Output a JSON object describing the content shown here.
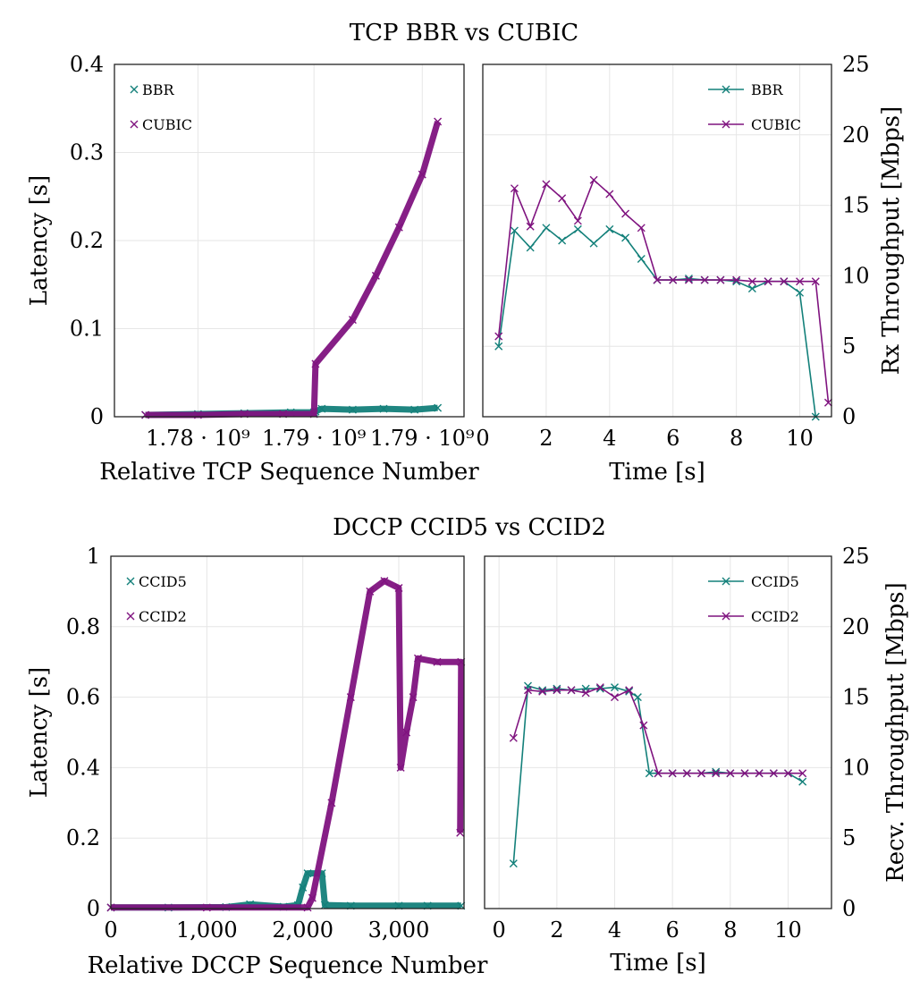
{
  "colors": {
    "teal": "#13807a",
    "purple": "#7f137f"
  },
  "sections": [
    {
      "title": "TCP BBR vs CUBIC",
      "left": {
        "type": "scatter",
        "ylabel": "Latency [s]",
        "xlabel": "Relative TCP Sequence Number",
        "xlim": [
          1.7746,
          1.7972
        ],
        "ylim": [
          0,
          0.4
        ],
        "yticks": [
          0,
          0.1,
          0.2,
          0.3,
          0.4
        ],
        "yticklabels": [
          "0",
          "0.1",
          "0.2",
          "0.3",
          "0.4"
        ],
        "xticks": [
          1.78,
          1.7875,
          1.7945
        ],
        "xticklabels": [
          "1.78 · 10⁹",
          "1.79 · 10⁹",
          "1.79 · 10⁹"
        ],
        "legend_position": "top-left",
        "series": [
          {
            "name": "BBR",
            "color": "teal",
            "points": [
              [
                1.7766,
                0.002
              ],
              [
                1.78,
                0.003
              ],
              [
                1.783,
                0.004
              ],
              [
                1.786,
                0.005
              ],
              [
                1.7875,
                0.005
              ],
              [
                1.7876,
                0.006
              ],
              [
                1.788,
                0.009
              ],
              [
                1.79,
                0.008
              ],
              [
                1.792,
                0.009
              ],
              [
                1.794,
                0.008
              ],
              [
                1.7955,
                0.01
              ]
            ]
          },
          {
            "name": "CUBIC",
            "color": "purple",
            "points": [
              [
                1.7766,
                0.002
              ],
              [
                1.78,
                0.002
              ],
              [
                1.783,
                0.003
              ],
              [
                1.7855,
                0.003
              ],
              [
                1.7875,
                0.003
              ],
              [
                1.7876,
                0.06
              ],
              [
                1.79,
                0.11
              ],
              [
                1.7915,
                0.16
              ],
              [
                1.793,
                0.215
              ],
              [
                1.7945,
                0.275
              ],
              [
                1.7955,
                0.335
              ]
            ]
          }
        ]
      },
      "right": {
        "type": "line",
        "ylabel": "Rx Throughput [Mbps]",
        "xlabel": "Time [s]",
        "xlim": [
          0,
          11
        ],
        "ylim": [
          0,
          25
        ],
        "xticks": [
          0,
          2,
          4,
          6,
          8,
          10
        ],
        "yticks": [
          0,
          5,
          10,
          15,
          20,
          25
        ],
        "legend_position": "top-right",
        "series": [
          {
            "name": "BBR",
            "color": "teal",
            "points": [
              [
                0.5,
                5.0
              ],
              [
                1,
                13.2
              ],
              [
                1.5,
                12.0
              ],
              [
                2,
                13.4
              ],
              [
                2.5,
                12.5
              ],
              [
                3,
                13.3
              ],
              [
                3.5,
                12.3
              ],
              [
                4,
                13.3
              ],
              [
                4.5,
                12.7
              ],
              [
                5,
                11.2
              ],
              [
                5.5,
                9.7
              ],
              [
                6,
                9.7
              ],
              [
                6.5,
                9.8
              ],
              [
                7,
                9.7
              ],
              [
                7.5,
                9.7
              ],
              [
                8,
                9.6
              ],
              [
                8.5,
                9.1
              ],
              [
                9,
                9.6
              ],
              [
                9.5,
                9.6
              ],
              [
                10,
                8.8
              ],
              [
                10.5,
                0
              ]
            ]
          },
          {
            "name": "CUBIC",
            "color": "purple",
            "points": [
              [
                0.5,
                5.7
              ],
              [
                1,
                16.2
              ],
              [
                1.5,
                13.5
              ],
              [
                2,
                16.5
              ],
              [
                2.5,
                15.5
              ],
              [
                3,
                13.9
              ],
              [
                3.5,
                16.8
              ],
              [
                4,
                15.8
              ],
              [
                4.5,
                14.4
              ],
              [
                5,
                13.4
              ],
              [
                5.5,
                9.7
              ],
              [
                6,
                9.7
              ],
              [
                6.5,
                9.7
              ],
              [
                7,
                9.7
              ],
              [
                7.5,
                9.7
              ],
              [
                8,
                9.7
              ],
              [
                8.5,
                9.6
              ],
              [
                9,
                9.6
              ],
              [
                9.5,
                9.6
              ],
              [
                10,
                9.6
              ],
              [
                10.5,
                9.6
              ],
              [
                10.9,
                1.0
              ]
            ]
          }
        ]
      }
    },
    {
      "title": "DCCP CCID5 vs CCID2",
      "left": {
        "type": "scatter",
        "ylabel": "Latency [s]",
        "xlabel": "Relative DCCP Sequence Number",
        "xlim": [
          0,
          3680
        ],
        "ylim": [
          0,
          1
        ],
        "yticks": [
          0,
          0.2,
          0.4,
          0.6,
          0.8,
          1
        ],
        "yticklabels": [
          "0",
          "0.2",
          "0.4",
          "0.6",
          "0.8",
          "1"
        ],
        "xticks": [
          0,
          1000,
          2000,
          3000
        ],
        "xticklabels": [
          "0",
          "1,000",
          "2,000",
          "3,000"
        ],
        "legend_position": "top-left",
        "series": [
          {
            "name": "CCID5",
            "color": "teal",
            "points": [
              [
                0,
                0.003
              ],
              [
                600,
                0.003
              ],
              [
                1200,
                0.004
              ],
              [
                1450,
                0.012
              ],
              [
                1800,
                0.005
              ],
              [
                1950,
                0.01
              ],
              [
                2000,
                0.06
              ],
              [
                2050,
                0.1
              ],
              [
                2200,
                0.1
              ],
              [
                2230,
                0.01
              ],
              [
                2500,
                0.008
              ],
              [
                3000,
                0.008
              ],
              [
                3300,
                0.008
              ],
              [
                3650,
                0.008
              ]
            ]
          },
          {
            "name": "CCID2",
            "color": "purple",
            "points": [
              [
                0,
                0.003
              ],
              [
                1000,
                0.003
              ],
              [
                2050,
                0.003
              ],
              [
                2100,
                0.03
              ],
              [
                2300,
                0.3
              ],
              [
                2500,
                0.6
              ],
              [
                2700,
                0.9
              ],
              [
                2850,
                0.93
              ],
              [
                3000,
                0.91
              ],
              [
                3020,
                0.4
              ],
              [
                3080,
                0.5
              ],
              [
                3150,
                0.6
              ],
              [
                3200,
                0.71
              ],
              [
                3400,
                0.7
              ],
              [
                3650,
                0.7
              ],
              [
                3640,
                0.215
              ]
            ]
          }
        ]
      },
      "right": {
        "type": "line",
        "ylabel": "Recv. Throughput [Mbps]",
        "xlabel": "Time [s]",
        "xlim": [
          -0.5,
          11.5
        ],
        "ylim": [
          0,
          25
        ],
        "xticks": [
          0,
          2,
          4,
          6,
          8,
          10
        ],
        "yticks": [
          0,
          5,
          10,
          15,
          20,
          25
        ],
        "legend_position": "top-right",
        "series": [
          {
            "name": "CCID5",
            "color": "teal",
            "points": [
              [
                0.5,
                3.2
              ],
              [
                1,
                15.8
              ],
              [
                1.5,
                15.5
              ],
              [
                2,
                15.6
              ],
              [
                2.5,
                15.5
              ],
              [
                3,
                15.6
              ],
              [
                3.5,
                15.6
              ],
              [
                4,
                15.7
              ],
              [
                4.5,
                15.4
              ],
              [
                4.8,
                15.0
              ],
              [
                5.2,
                9.6
              ],
              [
                5.5,
                9.6
              ],
              [
                6,
                9.6
              ],
              [
                6.5,
                9.6
              ],
              [
                7,
                9.6
              ],
              [
                7.5,
                9.7
              ],
              [
                8,
                9.6
              ],
              [
                8.5,
                9.6
              ],
              [
                9,
                9.6
              ],
              [
                9.5,
                9.6
              ],
              [
                10,
                9.6
              ],
              [
                10.5,
                9.0
              ]
            ]
          },
          {
            "name": "CCID2",
            "color": "purple",
            "points": [
              [
                0.5,
                12.1
              ],
              [
                1,
                15.5
              ],
              [
                1.5,
                15.4
              ],
              [
                2,
                15.5
              ],
              [
                2.5,
                15.5
              ],
              [
                3,
                15.3
              ],
              [
                3.5,
                15.7
              ],
              [
                4,
                15.0
              ],
              [
                4.5,
                15.5
              ],
              [
                5,
                13.0
              ],
              [
                5.5,
                9.6
              ],
              [
                6,
                9.6
              ],
              [
                6.5,
                9.6
              ],
              [
                7,
                9.6
              ],
              [
                7.5,
                9.6
              ],
              [
                8,
                9.6
              ],
              [
                8.5,
                9.6
              ],
              [
                9,
                9.6
              ],
              [
                9.5,
                9.6
              ],
              [
                10,
                9.6
              ],
              [
                10.5,
                9.6
              ]
            ]
          }
        ]
      }
    }
  ]
}
